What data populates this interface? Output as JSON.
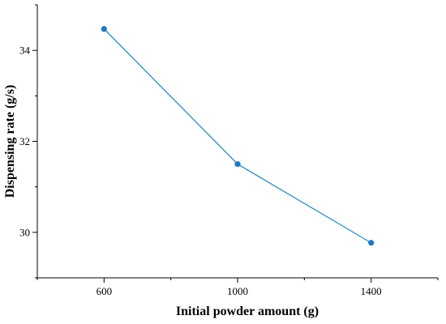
{
  "chart_data": {
    "type": "line",
    "xlabel": "Initial powder amount (g)",
    "ylabel": "Dispensing rate (g/s)",
    "xlim": [
      400,
      1600
    ],
    "ylim": [
      29,
      35
    ],
    "x_ticks": [
      600,
      1000,
      1400
    ],
    "x_tick_labels": [
      "600",
      "1000",
      "1400"
    ],
    "x_minor_ticks": [
      400,
      800,
      1200,
      1600
    ],
    "y_ticks": [
      30,
      32,
      34
    ],
    "y_tick_labels": [
      "30",
      "32",
      "34"
    ],
    "y_minor_ticks": [
      29,
      31,
      33,
      35
    ],
    "grid": false,
    "legend": "none",
    "color": "#1f77c4",
    "line_color": "#2a8fbf",
    "series": [
      {
        "x": [
          600,
          1000,
          1400
        ],
        "y": [
          34.47,
          31.5,
          29.77
        ]
      }
    ]
  }
}
